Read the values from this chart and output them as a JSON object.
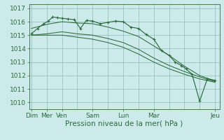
{
  "bg_color": "#cdeaea",
  "grid_color": "#8bbcbc",
  "line_color": "#2d6b3c",
  "xlabel": "Pression niveau de la mer( hPa )",
  "ylim": [
    1009.5,
    1017.3
  ],
  "yticks": [
    1010,
    1011,
    1012,
    1013,
    1014,
    1015,
    1016,
    1017
  ],
  "line1_x": [
    0,
    0.4,
    0.8,
    1.1,
    1.4,
    1.7,
    2.0,
    2.4,
    2.8,
    3.2,
    3.6,
    4.0,
    4.5,
    5.0,
    5.5,
    6.0,
    6.5,
    7.0,
    7.5,
    8.0,
    8.5,
    9.0,
    9.4,
    9.8,
    10.1,
    10.5,
    11.0,
    11.5,
    12.0
  ],
  "line1_y": [
    1015.1,
    1015.5,
    1015.85,
    1016.05,
    1016.35,
    1016.3,
    1016.25,
    1016.2,
    1016.15,
    1015.5,
    1016.1,
    1016.05,
    1015.85,
    1015.95,
    1016.05,
    1016.0,
    1015.6,
    1015.5,
    1015.05,
    1014.7,
    1013.85,
    1013.5,
    1013.0,
    1012.75,
    1012.5,
    1012.1,
    1010.1,
    1011.75,
    1011.65
  ],
  "line2_x": [
    0,
    1,
    2,
    3,
    4,
    5,
    6,
    7,
    8,
    9,
    10,
    11,
    12
  ],
  "line2_y": [
    1015.5,
    1015.8,
    1016.0,
    1015.9,
    1015.85,
    1015.6,
    1015.3,
    1014.9,
    1014.2,
    1013.5,
    1012.7,
    1012.0,
    1011.6
  ],
  "line3_x": [
    0,
    1,
    2,
    3,
    4,
    5,
    6,
    7,
    8,
    9,
    10,
    11,
    12
  ],
  "line3_y": [
    1015.0,
    1015.1,
    1015.25,
    1015.1,
    1015.0,
    1014.75,
    1014.45,
    1013.95,
    1013.3,
    1012.75,
    1012.3,
    1011.9,
    1011.55
  ],
  "line4_x": [
    0,
    1,
    2,
    3,
    4,
    5,
    6,
    7,
    8,
    9,
    10,
    11,
    12
  ],
  "line4_y": [
    1015.0,
    1015.0,
    1015.0,
    1014.85,
    1014.7,
    1014.45,
    1014.1,
    1013.6,
    1013.0,
    1012.5,
    1012.1,
    1011.75,
    1011.5
  ],
  "xlabel_fontsize": 7.5,
  "tick_fontsize": 6.5,
  "day_positions": [
    0,
    1,
    2,
    4,
    6,
    8,
    12
  ],
  "day_labels": [
    "Dim",
    "Mer",
    "Ven",
    "Sam",
    "Lun",
    "Mar",
    "Jeu"
  ]
}
